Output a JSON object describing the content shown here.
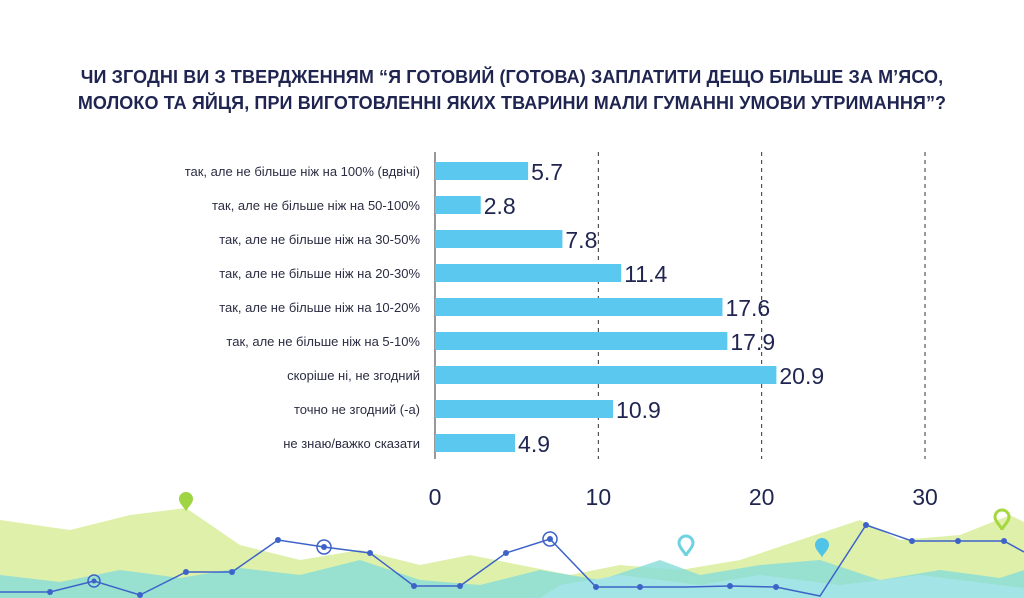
{
  "chart_data": {
    "type": "bar",
    "orientation": "horizontal",
    "title_lines": [
      "ЧИ ЗГОДНІ ВИ З ТВЕРДЖЕННЯМ “Я ГОТОВИЙ (ГОТОВА) ЗАПЛАТИТИ ДЕЩО БІЛЬШЕ ЗА М’ЯСО,",
      "МОЛОКО ТА ЯЙЦЯ, ПРИ ВИГОТОВЛЕННІ ЯКИХ ТВАРИНИ МАЛИ ГУМАННІ УМОВИ УТРИМАННЯ”?"
    ],
    "categories": [
      "так, але не більше ніж на 100% (вдвічі)",
      "так, але не більше ніж на 50-100%",
      "так, але не більше ніж на 30-50%",
      "так, але не більше ніж на 20-30%",
      "так, але не більше ніж на 10-20%",
      "так, але не більше ніж на 5-10%",
      "скоріше ні, не згодний",
      "точно не згодний (-а)",
      "не знаю/важко сказати"
    ],
    "values": [
      5.7,
      2.8,
      7.8,
      11.4,
      17.6,
      17.9,
      20.9,
      10.9,
      4.9
    ],
    "value_labels": [
      "5.7",
      "2.8",
      "7.8",
      "11.4",
      "17.6",
      "17.9",
      "20.9",
      "10.9",
      "4.9"
    ],
    "x_ticks": [
      0,
      10,
      20,
      30
    ],
    "x_tick_labels": [
      "0",
      "10",
      "20",
      "30"
    ],
    "xlim": [
      0,
      30
    ],
    "grid": "vertical dashed",
    "bar_color": "#5bc8f0"
  },
  "colors": {
    "title": "#1f2550",
    "label": "#2b2d42",
    "axis_numbers": "#1f2550",
    "grid": "#333333",
    "deco_green": "#c6e27a",
    "deco_teal": "#7fd8d6",
    "deco_blue_line": "#3d63c9"
  }
}
